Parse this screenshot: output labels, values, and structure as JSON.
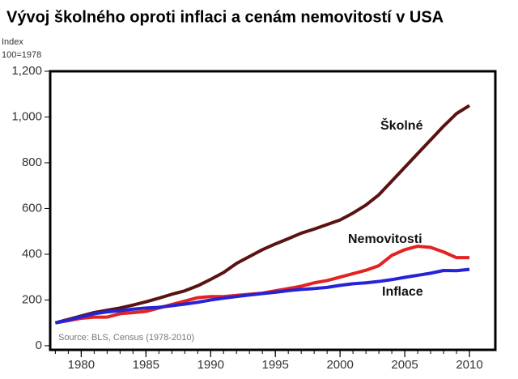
{
  "chart_data": {
    "type": "line",
    "title": "Vývoj školného oproti inflaci a cenám nemovitostí v USA",
    "y_label": "Index",
    "y_sublabel": "100=1978",
    "source": "Source: BLS, Census (1978-2010)",
    "x": [
      1978,
      1979,
      1980,
      1981,
      1982,
      1983,
      1984,
      1985,
      1986,
      1987,
      1988,
      1989,
      1990,
      1991,
      1992,
      1993,
      1994,
      1995,
      1996,
      1997,
      1998,
      1999,
      2000,
      2001,
      2002,
      2003,
      2004,
      2005,
      2006,
      2007,
      2008,
      2009,
      2010
    ],
    "series": [
      {
        "name": "Školné",
        "color": "#5a1212",
        "values": [
          100,
          115,
          130,
          145,
          155,
          165,
          178,
          192,
          208,
          225,
          240,
          262,
          290,
          320,
          360,
          390,
          420,
          445,
          468,
          492,
          510,
          530,
          550,
          580,
          615,
          660,
          720,
          780,
          840,
          900,
          960,
          1015,
          1050
        ]
      },
      {
        "name": "Nemovitosti",
        "color": "#e32222",
        "values": [
          100,
          110,
          120,
          125,
          125,
          140,
          145,
          150,
          165,
          180,
          195,
          210,
          215,
          215,
          220,
          225,
          230,
          240,
          250,
          260,
          275,
          285,
          300,
          315,
          330,
          350,
          395,
          420,
          435,
          430,
          410,
          385,
          385
        ]
      },
      {
        "name": "Inflace",
        "color": "#2424d6",
        "values": [
          100,
          112,
          126,
          140,
          148,
          153,
          160,
          165,
          168,
          175,
          182,
          190,
          200,
          208,
          215,
          222,
          228,
          234,
          241,
          246,
          250,
          255,
          264,
          271,
          275,
          281,
          289,
          299,
          308,
          317,
          329,
          328,
          334
        ]
      }
    ],
    "xlim": [
      1977.6,
      2012
    ],
    "xticks": [
      1980,
      1985,
      1990,
      1995,
      2000,
      2005,
      2010
    ],
    "ylim": [
      -18,
      1200
    ],
    "yticks": [
      0,
      200,
      400,
      600,
      800,
      {
        "value": 1000,
        "label": "1,000"
      },
      {
        "value": 1200,
        "label": "1,200"
      }
    ]
  }
}
